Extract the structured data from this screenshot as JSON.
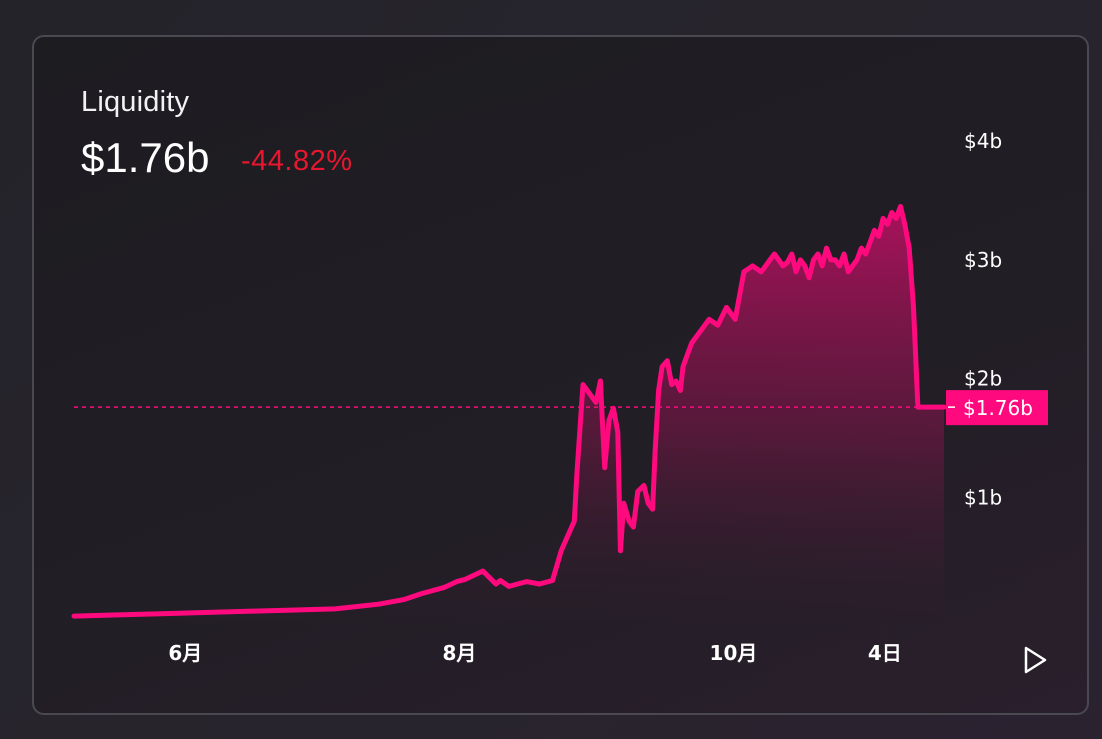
{
  "header": {
    "title": "Liquidity",
    "value": "$1.76b",
    "change": "-44.82%"
  },
  "colors": {
    "accent": "#ff0a7e",
    "negative": "#e8162e",
    "text": "#ffffff"
  },
  "controls": {
    "play_icon": "play-icon"
  },
  "chart_data": {
    "type": "area",
    "title": "Liquidity",
    "unit": "$b",
    "x_tick_labels": [
      "6月",
      "8月",
      "10月",
      "4日"
    ],
    "y_tick_labels": [
      "$4b",
      "$3b",
      "$2b",
      "$1b"
    ],
    "y_tick_values": [
      4,
      3,
      2,
      1
    ],
    "ylim": [
      -0.05,
      4.6
    ],
    "xlim": [
      0,
      1
    ],
    "current_value": 1.76,
    "current_label": "$1.76b",
    "reference_line": 1.76,
    "grid": false,
    "series": [
      {
        "x": [
          0.0,
          0.05,
          0.1,
          0.15,
          0.2,
          0.25,
          0.3,
          0.35,
          0.38,
          0.4,
          0.41,
          0.425,
          0.44,
          0.45,
          0.47,
          0.485,
          0.49,
          0.5,
          0.52,
          0.535,
          0.55,
          0.56,
          0.575,
          0.578,
          0.585,
          0.59,
          0.6,
          0.605,
          0.61,
          0.615,
          0.62,
          0.625,
          0.628,
          0.632,
          0.638,
          0.643,
          0.648,
          0.655,
          0.66,
          0.665,
          0.668,
          0.672,
          0.676,
          0.682,
          0.687,
          0.692,
          0.697,
          0.7,
          0.705,
          0.71,
          0.72,
          0.73,
          0.74,
          0.75,
          0.76,
          0.77,
          0.78,
          0.79,
          0.8,
          0.805,
          0.81,
          0.815,
          0.82,
          0.825,
          0.83,
          0.835,
          0.84,
          0.845,
          0.85,
          0.855,
          0.86,
          0.865,
          0.87,
          0.875,
          0.88,
          0.885,
          0.89,
          0.895,
          0.9,
          0.905,
          0.91,
          0.915,
          0.92,
          0.925,
          0.93,
          0.935,
          0.94,
          0.945,
          0.95,
          0.955,
          0.96,
          0.965,
          0.97,
          0.975,
          0.98,
          0.985,
          0.99,
          0.995,
          1.0
        ],
        "y": [
          0.0,
          0.01,
          0.02,
          0.03,
          0.04,
          0.05,
          0.06,
          0.1,
          0.14,
          0.19,
          0.21,
          0.24,
          0.29,
          0.31,
          0.38,
          0.27,
          0.3,
          0.25,
          0.29,
          0.27,
          0.3,
          0.55,
          0.8,
          1.2,
          1.95,
          1.9,
          1.8,
          1.98,
          1.25,
          1.65,
          1.75,
          1.55,
          0.55,
          0.95,
          0.8,
          0.75,
          1.05,
          1.1,
          0.95,
          0.9,
          1.4,
          1.9,
          2.1,
          2.15,
          1.95,
          1.98,
          1.9,
          2.1,
          2.2,
          2.3,
          2.4,
          2.5,
          2.45,
          2.6,
          2.5,
          2.9,
          2.95,
          2.9,
          3.0,
          3.05,
          3.0,
          2.95,
          2.98,
          3.05,
          2.9,
          3.0,
          2.95,
          2.85,
          3.0,
          3.05,
          2.95,
          3.1,
          3.0,
          3.0,
          2.95,
          3.05,
          2.9,
          2.95,
          3.0,
          3.1,
          3.05,
          3.15,
          3.25,
          3.2,
          3.35,
          3.3,
          3.4,
          3.35,
          3.45,
          3.3,
          3.1,
          2.6,
          1.76,
          1.76,
          1.76,
          1.76,
          1.76,
          1.76,
          1.76
        ]
      }
    ]
  }
}
